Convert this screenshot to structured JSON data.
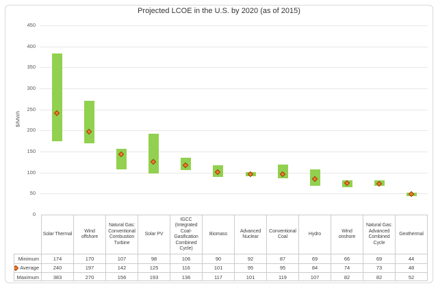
{
  "chart_data": {
    "type": "bar",
    "subtype": "floating-range-bars-with-average-markers",
    "title": "Projected LCOE in the U.S. by 2020 (as of 2015)",
    "xlabel": "",
    "ylabel": "$/MWh",
    "ylim": [
      0,
      450
    ],
    "ytick_step": 50,
    "yticks": [
      0,
      50,
      100,
      150,
      200,
      250,
      300,
      350,
      400,
      450
    ],
    "grid": true,
    "legend_position": "none",
    "categories": [
      "Solar Thermal",
      "Wind offshore",
      "Natural Gas: Conventional Combustion Turbine",
      "Solar PV",
      "IGCC (Integrated Coal-Gasification Combined Cycle)",
      "Biomass",
      "Advanced Nuclear",
      "Conventional Coal",
      "Hydro",
      "Wind onshore",
      "Natural Gas: Advanced Combined Cycle",
      "Geothermal"
    ],
    "category_label_lines": [
      [
        "Solar Thermal"
      ],
      [
        "Wind",
        "offshore"
      ],
      [
        "Natural Gas:",
        "Conventional",
        "Combustion",
        "Turbine"
      ],
      [
        "Solar PV"
      ],
      [
        "IGCC",
        "(Integrated",
        "Coal-",
        "Gasification",
        "Combined",
        "Cycle)"
      ],
      [
        "Biomass"
      ],
      [
        "Advanced",
        "Nuclear"
      ],
      [
        "Conventional",
        "Coal"
      ],
      [
        "Hydro"
      ],
      [
        "Wind",
        "onshore"
      ],
      [
        "Natural Gas:",
        "Advanced",
        "Combined",
        "Cycle"
      ],
      [
        "Geothermal"
      ]
    ],
    "series": [
      {
        "name": "Minimum",
        "values": [
          174,
          170,
          107,
          98,
          106,
          90,
          92,
          87,
          69,
          66,
          69,
          44
        ],
        "legend_key": "none"
      },
      {
        "name": "Average",
        "values": [
          240,
          197,
          142,
          125,
          116,
          101,
          95,
          95,
          84,
          74,
          73,
          48
        ],
        "legend_key": "diamond"
      },
      {
        "name": "Maximum",
        "values": [
          383,
          270,
          156,
          193,
          136,
          117,
          101,
          119,
          107,
          82,
          82,
          52
        ],
        "legend_key": "none"
      }
    ],
    "colors": {
      "bar_fill": "#92D050",
      "marker_fill": "#ED7D31",
      "marker_edge": "#973C00",
      "gridline": "#E7E7E7",
      "table_border": "#CBCBCB",
      "axis_text": "#595959",
      "title_text": "#333333",
      "chart_border": "#D9D9D9",
      "background": "#FFFFFF"
    }
  }
}
